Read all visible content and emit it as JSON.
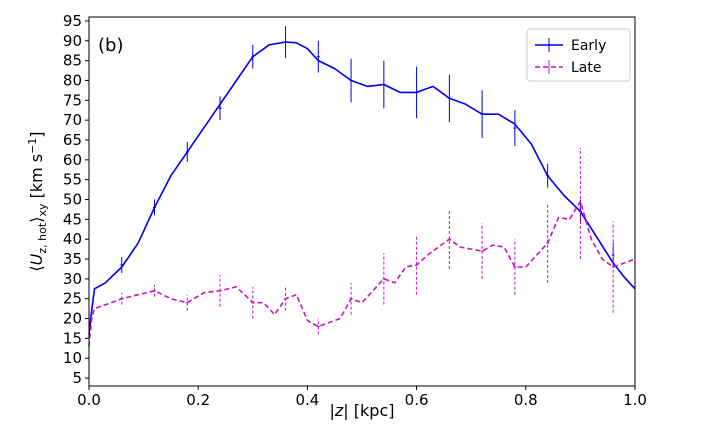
{
  "chart_data": {
    "type": "line",
    "panel_label": "(b)",
    "xlabel_parts": [
      "|",
      "z",
      "| [kpc]"
    ],
    "ylabel_parts": {
      "open": "⟨",
      "sym": "U",
      "sub": "z, hot",
      "close": "⟩",
      "outer_sub": "xy",
      "unit": " [km s",
      "sup": "−1",
      "end": "]"
    },
    "xlim": [
      0.0,
      1.0
    ],
    "ylim": [
      3,
      96
    ],
    "xticks": [
      0.0,
      0.2,
      0.4,
      0.6,
      0.8,
      1.0
    ],
    "xtick_labels": [
      "0.0",
      "0.2",
      "0.4",
      "0.6",
      "0.8",
      "1.0"
    ],
    "yticks": [
      5,
      10,
      15,
      20,
      25,
      30,
      35,
      40,
      45,
      50,
      55,
      60,
      65,
      70,
      75,
      80,
      85,
      90,
      95
    ],
    "ytick_labels": [
      "5",
      "10",
      "15",
      "20",
      "25",
      "30",
      "35",
      "40",
      "45",
      "50",
      "55",
      "60",
      "65",
      "70",
      "75",
      "80",
      "85",
      "90",
      "95"
    ],
    "grid": false,
    "legend_position": "top-right",
    "series": [
      {
        "name": "Early",
        "color": "#0000ee",
        "line_style": "solid",
        "x": [
          0.0,
          0.005,
          0.01,
          0.03,
          0.06,
          0.09,
          0.12,
          0.15,
          0.18,
          0.21,
          0.24,
          0.27,
          0.3,
          0.33,
          0.36,
          0.38,
          0.4,
          0.42,
          0.45,
          0.48,
          0.51,
          0.54,
          0.57,
          0.6,
          0.63,
          0.66,
          0.69,
          0.72,
          0.75,
          0.78,
          0.81,
          0.84,
          0.87,
          0.9,
          0.93,
          0.96,
          0.98,
          1.0
        ],
        "y": [
          16,
          22,
          27.5,
          29,
          33,
          39,
          48,
          56,
          62,
          68,
          74,
          80,
          86,
          89,
          89.7,
          89.5,
          88,
          85,
          83,
          80,
          78.5,
          79,
          77,
          77,
          78.5,
          75.5,
          74,
          71.5,
          71.5,
          69,
          64,
          56,
          51,
          47,
          40.5,
          34,
          30.5,
          27.5
        ]
      },
      {
        "name": "Late",
        "color": "#cc11cc",
        "line_style": "dashed",
        "x": [
          0.0,
          0.005,
          0.01,
          0.03,
          0.06,
          0.09,
          0.12,
          0.15,
          0.18,
          0.21,
          0.24,
          0.27,
          0.3,
          0.32,
          0.34,
          0.36,
          0.38,
          0.4,
          0.42,
          0.44,
          0.46,
          0.48,
          0.5,
          0.52,
          0.54,
          0.56,
          0.58,
          0.6,
          0.62,
          0.64,
          0.66,
          0.68,
          0.7,
          0.72,
          0.74,
          0.76,
          0.78,
          0.8,
          0.82,
          0.84,
          0.86,
          0.88,
          0.9,
          0.92,
          0.94,
          0.96,
          0.98,
          1.0
        ],
        "y": [
          13,
          20,
          22.5,
          23.5,
          25,
          26,
          27,
          25,
          24,
          26.5,
          27,
          28,
          24,
          24,
          21,
          25,
          26,
          19.5,
          18,
          19,
          20,
          25,
          24,
          27,
          30,
          29,
          33,
          33.5,
          36,
          38,
          40,
          38,
          37.5,
          37,
          38.5,
          38,
          33,
          33,
          36,
          39,
          45.5,
          45,
          49.5,
          40,
          35,
          33,
          34,
          35
        ]
      }
    ],
    "error_bars": [
      {
        "series": "Early",
        "x": [
          0.06,
          0.12,
          0.18,
          0.24,
          0.3,
          0.36,
          0.42,
          0.48,
          0.54,
          0.6,
          0.66,
          0.72,
          0.78,
          0.84,
          0.9,
          0.96
        ],
        "y": [
          33.5,
          48,
          62,
          73,
          86,
          89.7,
          86,
          80,
          79,
          77,
          75.5,
          71.5,
          68,
          56,
          47,
          36
        ],
        "err": [
          2,
          2,
          2.5,
          3,
          3,
          4,
          4,
          5.5,
          6,
          6.5,
          6,
          6,
          4.5,
          3,
          3,
          3
        ]
      },
      {
        "series": "Late",
        "x": [
          0.06,
          0.12,
          0.18,
          0.24,
          0.3,
          0.36,
          0.42,
          0.48,
          0.54,
          0.6,
          0.66,
          0.72,
          0.78,
          0.84,
          0.9,
          0.96
        ],
        "y": [
          25,
          27,
          24,
          27,
          24,
          25,
          18,
          25,
          30,
          33.5,
          40,
          37,
          33,
          39,
          49,
          33
        ],
        "err": [
          1.5,
          1.5,
          2,
          4,
          4,
          3,
          2,
          4,
          6.5,
          7.5,
          7.5,
          7,
          7,
          10,
          14,
          11.5
        ]
      }
    ]
  }
}
